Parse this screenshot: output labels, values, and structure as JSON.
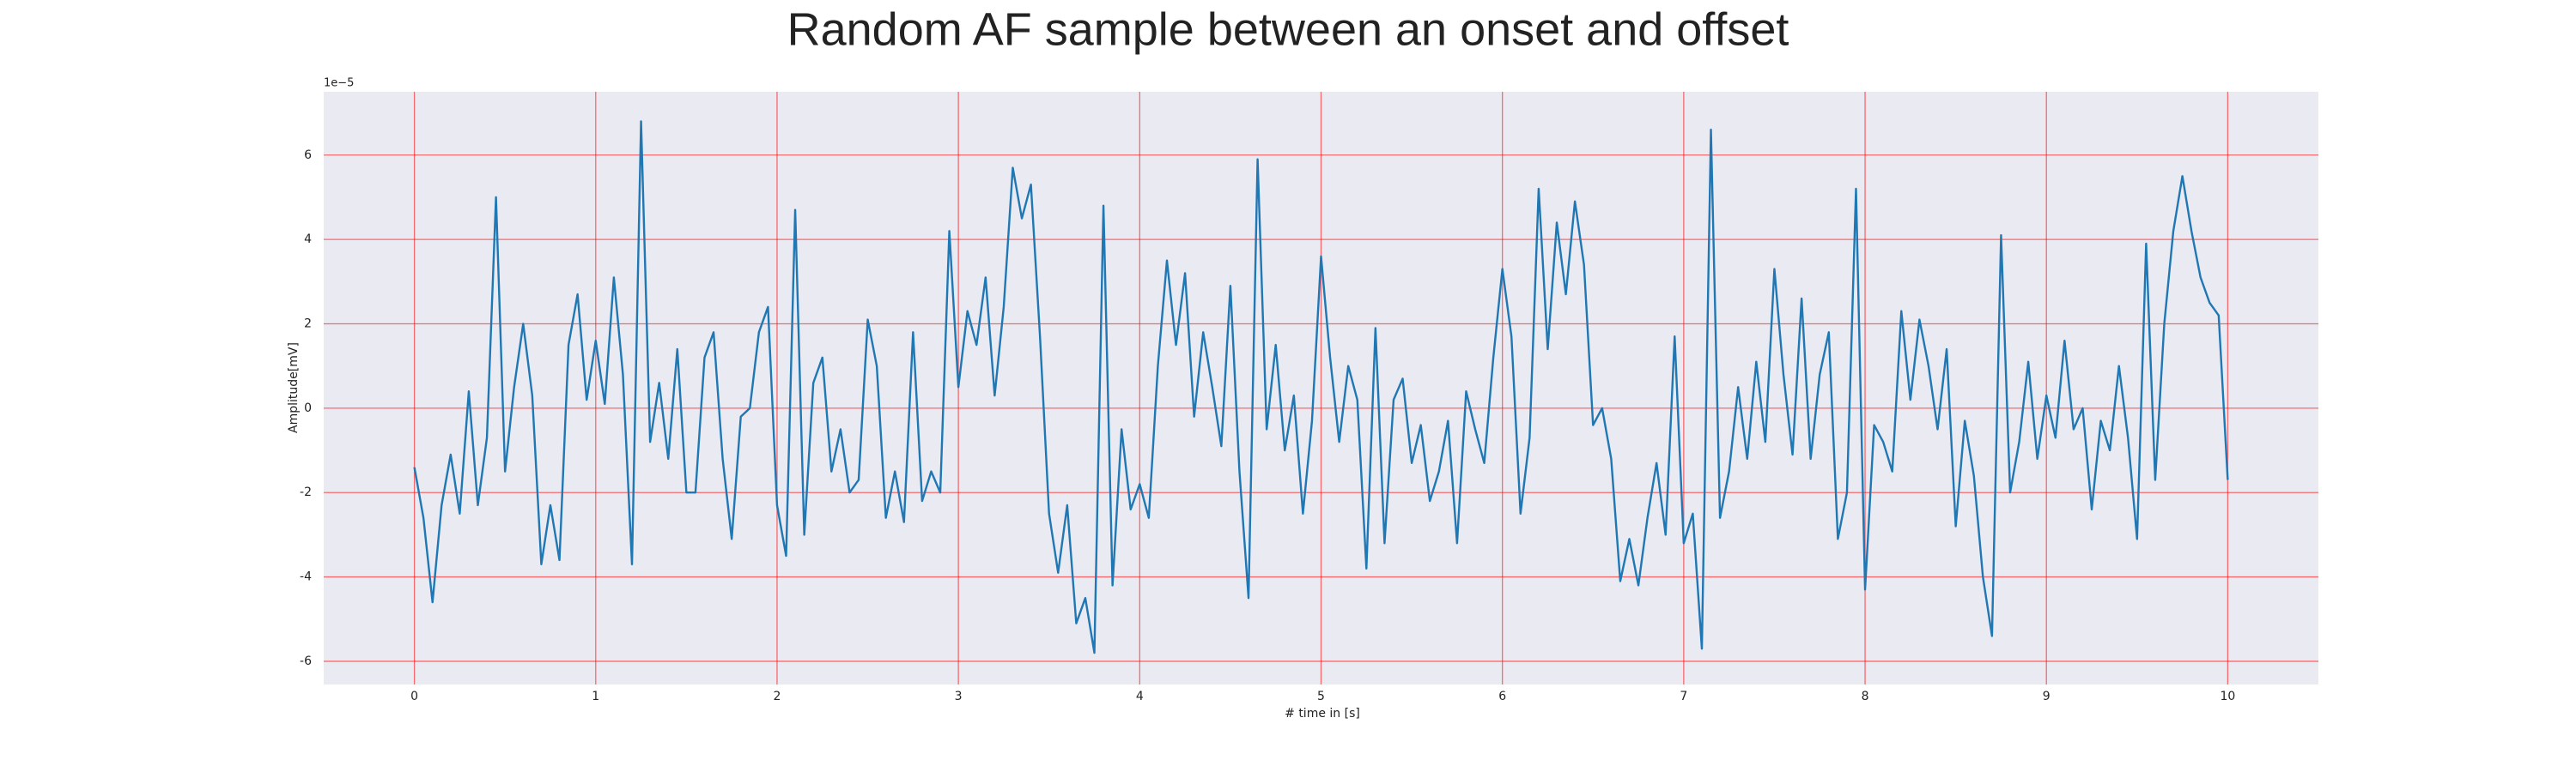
{
  "chart_data": {
    "type": "line",
    "title": "Random AF sample between an onset and offset",
    "xlabel": "# time in [s]",
    "ylabel": "Amplitude[mV]",
    "offset_label": "1e−5",
    "x": [
      0,
      0.05,
      0.1,
      0.15,
      0.2,
      0.25,
      0.3,
      0.35,
      0.4,
      0.45,
      0.5,
      0.55,
      0.6,
      0.65,
      0.7,
      0.75,
      0.8,
      0.85,
      0.9,
      0.95,
      1,
      1.05,
      1.1,
      1.15,
      1.2,
      1.25,
      1.3,
      1.35,
      1.4,
      1.45,
      1.5,
      1.55,
      1.6,
      1.65,
      1.7,
      1.75,
      1.8,
      1.85,
      1.9,
      1.95,
      2,
      2.05,
      2.1,
      2.15,
      2.2,
      2.25,
      2.3,
      2.35,
      2.4,
      2.45,
      2.5,
      2.55,
      2.6,
      2.65,
      2.7,
      2.75,
      2.8,
      2.85,
      2.9,
      2.95,
      3,
      3.05,
      3.1,
      3.15,
      3.2,
      3.25,
      3.3,
      3.35,
      3.4,
      3.45,
      3.5,
      3.55,
      3.6,
      3.65,
      3.7,
      3.75,
      3.8,
      3.85,
      3.9,
      3.95,
      4,
      4.05,
      4.1,
      4.15,
      4.2,
      4.25,
      4.3,
      4.35,
      4.4,
      4.45,
      4.5,
      4.55,
      4.6,
      4.65,
      4.7,
      4.75,
      4.8,
      4.85,
      4.9,
      4.95,
      5,
      5.05,
      5.1,
      5.15,
      5.2,
      5.25,
      5.3,
      5.35,
      5.4,
      5.45,
      5.5,
      5.55,
      5.6,
      5.65,
      5.7,
      5.75,
      5.8,
      5.85,
      5.9,
      5.95,
      6,
      6.05,
      6.1,
      6.15,
      6.2,
      6.25,
      6.3,
      6.35,
      6.4,
      6.45,
      6.5,
      6.55,
      6.6,
      6.65,
      6.7,
      6.75,
      6.8,
      6.85,
      6.9,
      6.95,
      7,
      7.05,
      7.1,
      7.15,
      7.2,
      7.25,
      7.3,
      7.35,
      7.4,
      7.45,
      7.5,
      7.55,
      7.6,
      7.65,
      7.7,
      7.75,
      7.8,
      7.85,
      7.9,
      7.95,
      8,
      8.05,
      8.1,
      8.15,
      8.2,
      8.25,
      8.3,
      8.35,
      8.4,
      8.45,
      8.5,
      8.55,
      8.6,
      8.65,
      8.7,
      8.75,
      8.8,
      8.85,
      8.9,
      8.95,
      9,
      9.05,
      9.1,
      9.15,
      9.2,
      9.25,
      9.3,
      9.35,
      9.4,
      9.45,
      9.5,
      9.55,
      9.6,
      9.65,
      9.7,
      9.75,
      9.8,
      9.85,
      9.9,
      9.95,
      10
    ],
    "series": [
      {
        "color": "#1f77b4",
        "values": [
          -1.4,
          -2.6,
          -4.6,
          -2.3,
          -1.1,
          -2.5,
          0.4,
          -2.3,
          -0.7,
          5.0,
          -1.5,
          0.5,
          2.0,
          0.3,
          -3.7,
          -2.3,
          -3.6,
          1.5,
          2.7,
          0.2,
          1.6,
          0.1,
          3.1,
          0.8,
          -3.7,
          6.8,
          -0.8,
          0.6,
          -1.2,
          1.4,
          -2.0,
          -2.0,
          1.2,
          1.8,
          -1.2,
          -3.1,
          -0.2,
          0.0,
          1.8,
          2.4,
          -2.3,
          -3.5,
          4.7,
          -3.0,
          0.6,
          1.2,
          -1.5,
          -0.5,
          -2.0,
          -1.7,
          2.1,
          1.0,
          -2.6,
          -1.5,
          -2.7,
          1.8,
          -2.2,
          -1.5,
          -2.0,
          4.2,
          0.5,
          2.3,
          1.5,
          3.1,
          0.3,
          2.4,
          5.7,
          4.5,
          5.3,
          1.7,
          -2.5,
          -3.9,
          -2.3,
          -5.1,
          -4.5,
          -5.8,
          4.8,
          -4.2,
          -0.5,
          -2.4,
          -1.8,
          -2.6,
          1.0,
          3.5,
          1.5,
          3.2,
          -0.2,
          1.8,
          0.5,
          -0.9,
          2.9,
          -1.5,
          -4.5,
          5.9,
          -0.5,
          1.5,
          -1.0,
          0.3,
          -2.5,
          -0.3,
          3.6,
          1.2,
          -0.8,
          1.0,
          0.2,
          -3.8,
          1.9,
          -3.2,
          0.2,
          0.7,
          -1.3,
          -0.4,
          -2.2,
          -1.5,
          -0.3,
          -3.2,
          0.4,
          -0.5,
          -1.3,
          1.2,
          3.3,
          1.7,
          -2.5,
          -0.7,
          5.2,
          1.4,
          4.4,
          2.7,
          4.9,
          3.4,
          -0.4,
          0.0,
          -1.2,
          -4.1,
          -3.1,
          -4.2,
          -2.6,
          -1.3,
          -3.0,
          1.7,
          -3.2,
          -2.5,
          -5.7,
          6.6,
          -2.6,
          -1.5,
          0.5,
          -1.2,
          1.1,
          -0.8,
          3.3,
          0.8,
          -1.1,
          2.6,
          -1.2,
          0.8,
          1.8,
          -3.1,
          -2.0,
          5.2,
          -4.3,
          -0.4,
          -0.8,
          -1.5,
          2.3,
          0.2,
          2.1,
          1.0,
          -0.5,
          1.4,
          -2.8,
          -0.3,
          -1.6,
          -4.0,
          -5.4,
          4.1,
          -2.0,
          -0.8,
          1.1,
          -1.2,
          0.3,
          -0.7,
          1.6,
          -0.5,
          0.0,
          -2.4,
          -0.3,
          -1.0,
          1.0,
          -0.7,
          -3.1,
          3.9,
          -1.7,
          2.0,
          4.2,
          5.5,
          4.2,
          3.1,
          2.5,
          2.2,
          -1.7
        ]
      }
    ],
    "xlim": [
      -0.5,
      10.5
    ],
    "xticks": [
      0,
      1,
      2,
      3,
      4,
      5,
      6,
      7,
      8,
      9,
      10
    ],
    "ylim": [
      -6.55,
      7.5
    ],
    "yticks": [
      -6,
      -4,
      -2,
      0,
      2,
      4,
      6
    ],
    "grid": true,
    "grid_color": "#ff0000",
    "plot_background": "#eaeaf2"
  }
}
